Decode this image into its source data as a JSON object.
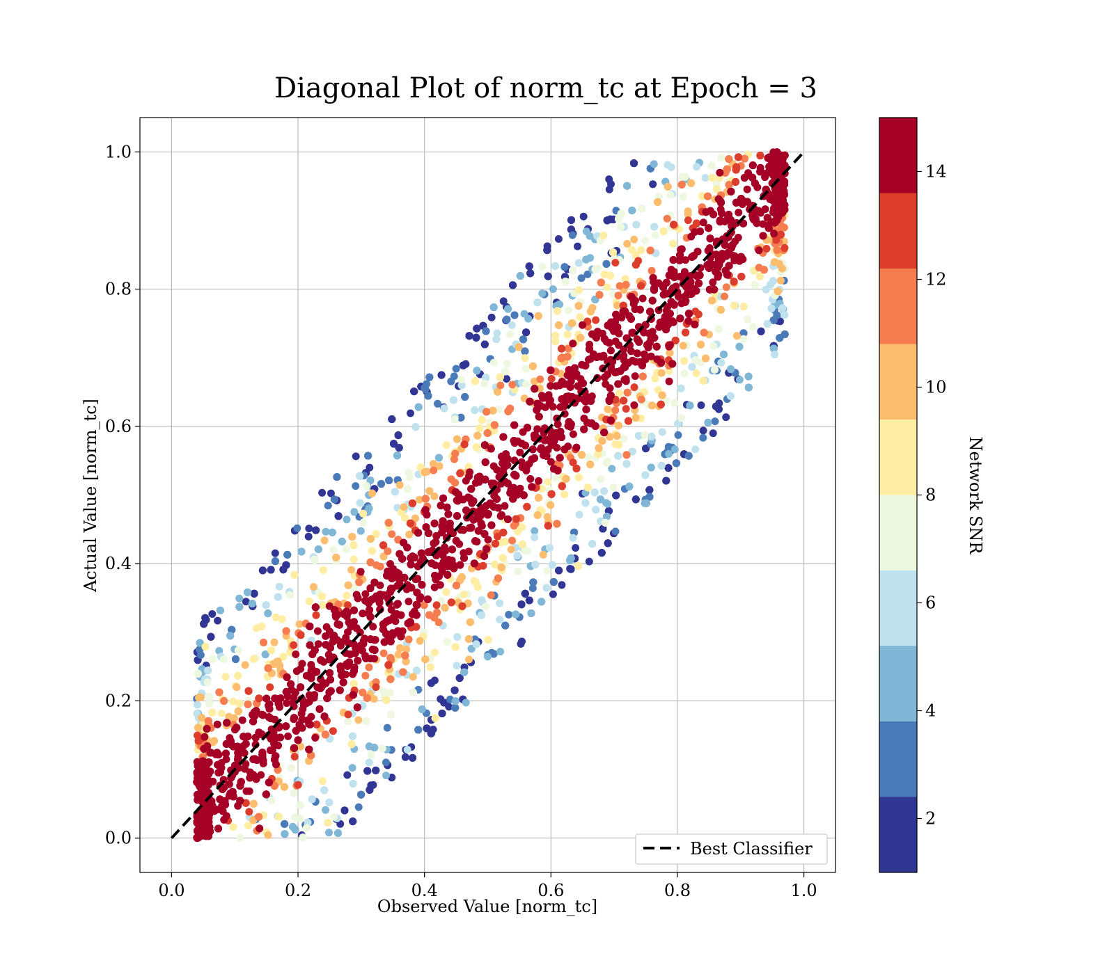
{
  "chart_data": {
    "type": "scatter",
    "title": "Diagonal Plot of norm_tc at Epoch = 3",
    "xlabel": "Observed Value [norm_tc]",
    "ylabel": "Actual Value [norm_tc]",
    "xlim": [
      -0.05,
      1.05
    ],
    "ylim": [
      -0.05,
      1.05
    ],
    "x_ticks": [
      "0.0",
      "0.2",
      "0.4",
      "0.6",
      "0.8",
      "1.0"
    ],
    "y_ticks": [
      "0.0",
      "0.2",
      "0.4",
      "0.6",
      "0.8",
      "1.0"
    ],
    "grid": true,
    "legend": {
      "placement": "lower-right",
      "entries": [
        "Best Classifier"
      ]
    },
    "reference_line": {
      "label": "Best Classifier",
      "style": "dashed",
      "color": "#000000",
      "x": [
        0.0,
        1.0
      ],
      "y": [
        0.0,
        1.0
      ]
    },
    "colorbar": {
      "label": "Network SNR",
      "range": [
        1,
        15
      ],
      "tick_labels": [
        "2",
        "4",
        "6",
        "8",
        "10",
        "12",
        "14"
      ],
      "tick_values": [
        2,
        4,
        6,
        8,
        10,
        12,
        14
      ],
      "bin_colors": [
        "#313695",
        "#4a7ab7",
        "#80b6d6",
        "#bfe2ee",
        "#eef8e1",
        "#feeda2",
        "#fdbd6f",
        "#f57d4f",
        "#dc3d2d",
        "#a50026"
      ]
    },
    "point_description": {
      "x_range": [
        0.04,
        0.97
      ],
      "y_range": [
        0.0,
        1.0
      ],
      "spread_envelope_x_minus_y": [
        -0.27,
        0.27
      ],
      "high_snr_clusters_along_diagonal": true
    }
  }
}
